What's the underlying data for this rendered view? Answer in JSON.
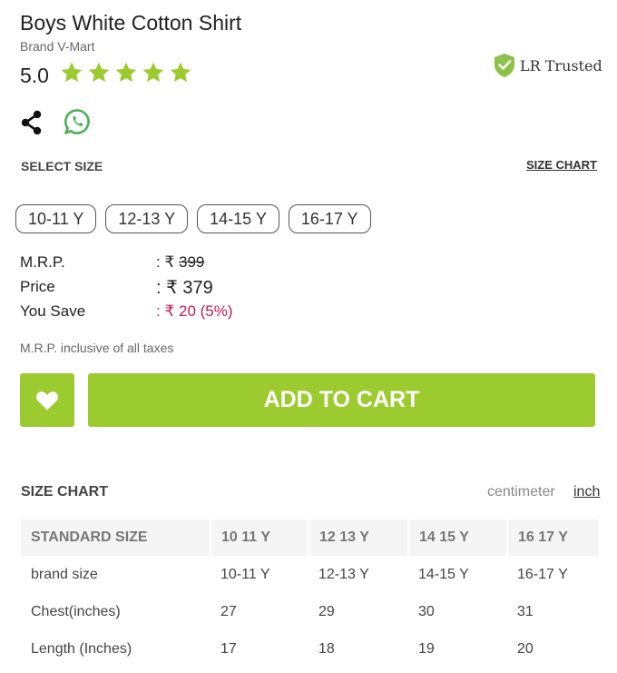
{
  "product": {
    "title": "Boys White Cotton Shirt",
    "brand": "Brand V-Mart",
    "rating": "5.0",
    "stars": 5,
    "trusted_label": "LR Trusted"
  },
  "colors": {
    "accent": "#9ccb30",
    "save": "#c2185b"
  },
  "icons": {
    "share": "share-icon",
    "whatsapp": "whatsapp-icon",
    "wishlist": "heart-icon",
    "trusted": "shield-check-icon",
    "star": "star-icon"
  },
  "size_select": {
    "label": "SELECT SIZE",
    "chart_link": "SIZE CHART",
    "options": [
      "10-11 Y",
      "12-13 Y",
      "14-15 Y",
      "16-17 Y"
    ]
  },
  "pricing": {
    "mrp_label": "M.R.P.",
    "mrp_prefix": ": ₹",
    "mrp_value": "399",
    "price_label": "Price",
    "price_value": ": ₹ 379",
    "save_label": "You Save",
    "save_value": ": ₹ 20 (5%)",
    "tax_note": "M.R.P. inclusive of all taxes"
  },
  "actions": {
    "add_to_cart": "ADD TO CART"
  },
  "size_chart": {
    "title": "SIZE CHART",
    "unit_cm": "centimeter",
    "unit_inch": "inch",
    "headers": [
      "STANDARD SIZE",
      "10 11 Y",
      "12 13 Y",
      "14 15 Y",
      "16 17 Y"
    ],
    "rows": [
      [
        "brand size",
        "10-11 Y",
        "12-13 Y",
        "14-15 Y",
        "16-17 Y"
      ],
      [
        "Chest(inches)",
        "27",
        "29",
        "30",
        "31"
      ],
      [
        "Length (Inches)",
        "17",
        "18",
        "19",
        "20"
      ]
    ]
  }
}
